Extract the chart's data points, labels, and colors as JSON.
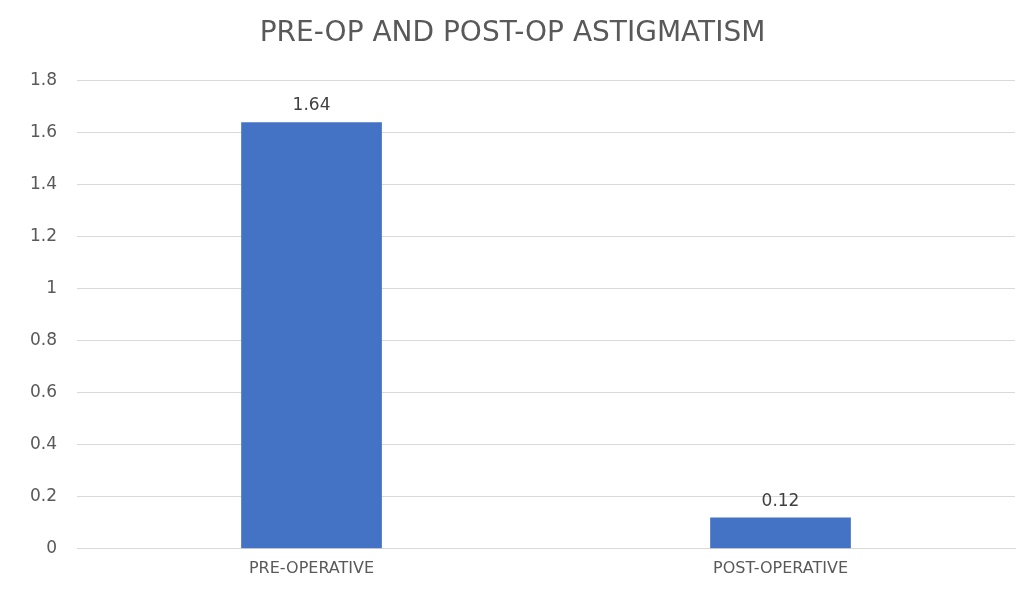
{
  "chart_data": {
    "type": "bar",
    "title": "PRE-OP AND POST-OP ASTIGMATISM",
    "categories": [
      "PRE-OPERATIVE",
      "POST-OPERATIVE"
    ],
    "values": [
      1.64,
      0.12
    ],
    "color": "#4472c4",
    "ylim": [
      0,
      1.8
    ],
    "yticks": [
      0,
      0.2,
      0.4,
      0.6,
      0.8,
      1,
      1.2,
      1.4,
      1.6,
      1.8
    ],
    "grid": "y",
    "data_labels": true
  }
}
